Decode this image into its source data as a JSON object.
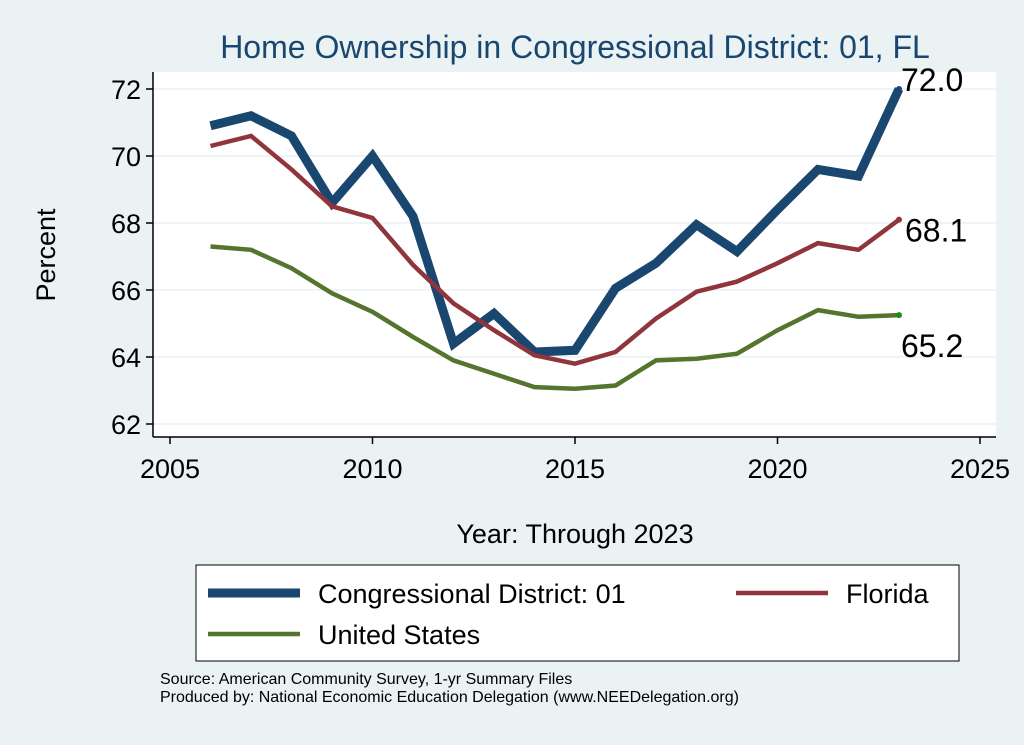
{
  "chart_data": {
    "type": "line",
    "title": "Home Ownership in Congressional District:  01, FL",
    "xlabel": "Year: Through 2023",
    "ylabel": "Percent",
    "xlim": [
      2005,
      2025
    ],
    "ylim": [
      62,
      72
    ],
    "x_ticks": [
      "2005",
      "2010",
      "2015",
      "2020",
      "2025"
    ],
    "y_ticks": [
      "62",
      "64",
      "66",
      "68",
      "70",
      "72"
    ],
    "x": [
      2006,
      2007,
      2008,
      2009,
      2010,
      2011,
      2012,
      2013,
      2014,
      2015,
      2016,
      2017,
      2018,
      2019,
      2020,
      2021,
      2022,
      2023
    ],
    "series": [
      {
        "name": "Congressional District:  01",
        "color": "#1a476f",
        "values": [
          70.9,
          71.2,
          70.6,
          68.6,
          70.0,
          68.2,
          64.4,
          65.3,
          64.15,
          64.2,
          66.05,
          66.8,
          67.95,
          67.15,
          68.4,
          69.6,
          69.4,
          72.0
        ],
        "end_label": "72.0"
      },
      {
        "name": "Florida",
        "color": "#90353b",
        "values": [
          70.3,
          70.6,
          69.6,
          68.5,
          68.15,
          66.75,
          65.6,
          64.8,
          64.05,
          63.8,
          64.15,
          65.15,
          65.95,
          66.25,
          66.8,
          67.4,
          67.2,
          68.1
        ],
        "end_label": "68.1"
      },
      {
        "name": "United States",
        "color": "#55752f",
        "values": [
          67.3,
          67.2,
          66.65,
          65.9,
          65.35,
          64.6,
          63.9,
          63.5,
          63.1,
          63.05,
          63.15,
          63.9,
          63.95,
          64.1,
          64.8,
          65.4,
          65.2,
          65.25
        ],
        "end_label": "65.2"
      }
    ],
    "legend_position": "bottom"
  },
  "footer": {
    "source": "Source: American Community Survey, 1-yr Summary Files",
    "produced": "Produced by: National Economic Education Delegation (www.NEEDelegation.org)"
  }
}
